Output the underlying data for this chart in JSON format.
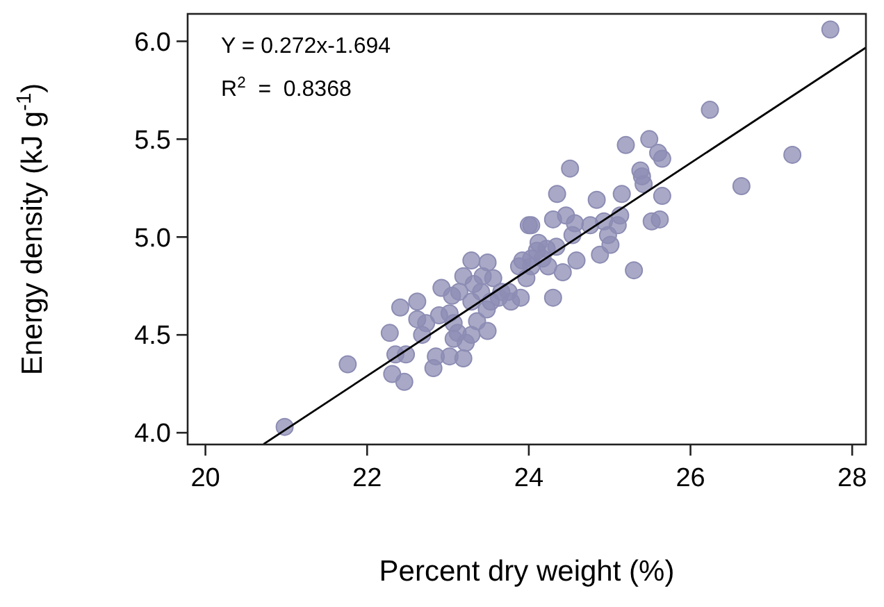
{
  "chart_data": {
    "type": "scatter",
    "xlabel": "Percent dry weight (%)",
    "ylabel": "Energy density (kJ g$^{-1}$)",
    "xlim": [
      19.78,
      28.17
    ],
    "ylim": [
      3.94,
      6.14
    ],
    "xticks": [
      20,
      22,
      24,
      26,
      28
    ],
    "yticks": [
      {
        "value": 4,
        "label": "4.0"
      },
      {
        "value": 4.5,
        "label": "4.5"
      },
      {
        "value": 5,
        "label": "5.0"
      },
      {
        "value": 5.5,
        "label": "5.5"
      },
      {
        "value": 6,
        "label": "6.0"
      }
    ],
    "grid": false,
    "annotations": [
      "Y = 0.272x-1.694",
      "R$^{2}$  =  0.8368"
    ],
    "series": [
      {
        "color": "#8c8cb4",
        "marker": "circle",
        "x": [
          20.98,
          21.76,
          22.28,
          22.35,
          22.48,
          22.31,
          22.46,
          22.41,
          22.62,
          22.62,
          22.73,
          22.68,
          22.85,
          22.82,
          23.02,
          23.19,
          22.92,
          23.05,
          23.19,
          23.29,
          23.49,
          23.43,
          23.56,
          23.14,
          23.41,
          23.29,
          22.89,
          23.02,
          23.07,
          23.12,
          23.07,
          23.22,
          23.29,
          23.36,
          23.49,
          23.48,
          23.53,
          23.63,
          23.78,
          23.75,
          23.9,
          24.0,
          23.92,
          24.03,
          24.51,
          24.35,
          24.84,
          25.15,
          25.38,
          25.42,
          25.65,
          24.03,
          24.3,
          24.46,
          24.57,
          24.76,
          24.93,
          25.1,
          24.98,
          25.01,
          24.88,
          24.54,
          24.59,
          25.3,
          25.52,
          25.62,
          24.3,
          24.42,
          24.34,
          24.03,
          24.17,
          24.24,
          23.88,
          23.97,
          27.73,
          26.24,
          27.26,
          26.63,
          25.2,
          25.49,
          25.6,
          25.65,
          25.4,
          25.13,
          24.1,
          24.22,
          24.12,
          23.66,
          23.32
        ],
        "values": [
          4.03,
          4.35,
          4.51,
          4.4,
          4.4,
          4.3,
          4.26,
          4.64,
          4.67,
          4.58,
          4.56,
          4.5,
          4.39,
          4.33,
          4.39,
          4.38,
          4.74,
          4.7,
          4.8,
          4.88,
          4.87,
          4.8,
          4.79,
          4.72,
          4.72,
          4.67,
          4.6,
          4.61,
          4.56,
          4.51,
          4.48,
          4.46,
          4.5,
          4.57,
          4.52,
          4.63,
          4.67,
          4.69,
          4.67,
          4.72,
          4.69,
          5.06,
          4.88,
          4.89,
          5.35,
          5.22,
          5.19,
          5.22,
          5.34,
          5.27,
          5.21,
          5.06,
          5.09,
          5.11,
          5.07,
          5.06,
          5.08,
          5.06,
          5.01,
          4.96,
          4.91,
          5.01,
          4.88,
          4.83,
          5.08,
          5.09,
          4.69,
          4.82,
          4.95,
          4.85,
          4.89,
          4.85,
          4.85,
          4.79,
          6.06,
          5.65,
          5.42,
          5.26,
          5.47,
          5.5,
          5.43,
          5.4,
          5.31,
          5.11,
          4.93,
          4.94,
          4.97,
          4.72,
          4.76
        ]
      },
      {
        "type": "line",
        "color": "#000000",
        "x": [
          20.72,
          28.17
        ],
        "values": [
          3.942,
          5.968
        ]
      }
    ]
  }
}
